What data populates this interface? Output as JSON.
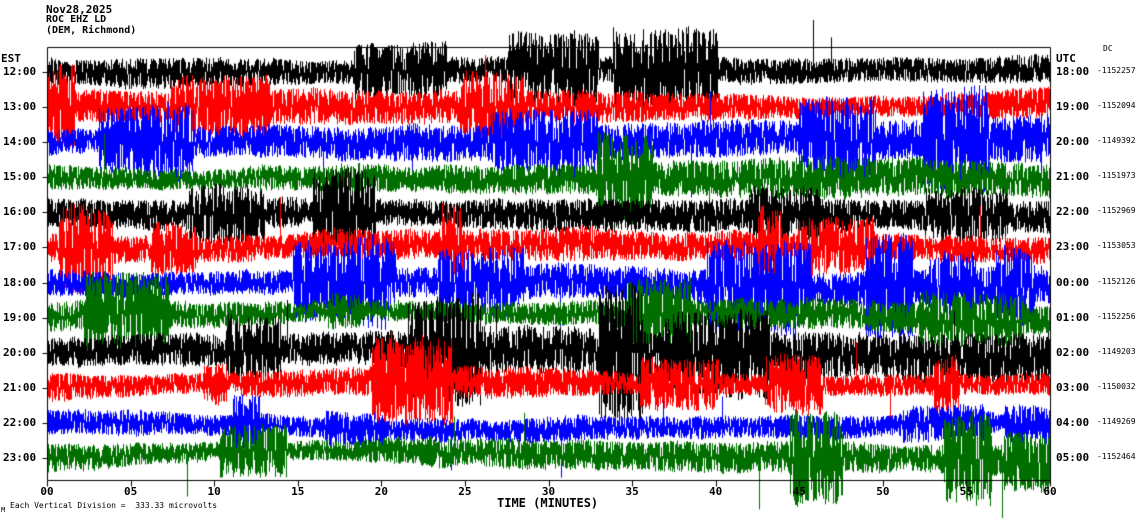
{
  "header": {
    "date": "Nov28,2025",
    "station": "ROC EHZ LD",
    "location": "(DEM, Richmond)"
  },
  "axes": {
    "left_label": "EST",
    "right_label": "UTC",
    "dc_label": "DC",
    "x_title": "TIME (MINUTES)",
    "x_ticks": [
      "00",
      "05",
      "10",
      "15",
      "20",
      "25",
      "30",
      "35",
      "40",
      "45",
      "50",
      "55",
      "60"
    ]
  },
  "footer": {
    "scale_note": "Each Vertical Division =  333.33 microvolts",
    "corner_mark": "M"
  },
  "chart_data": {
    "type": "line",
    "title": "ROC EHZ LD helicorder seismogram, Nov28,2025",
    "xlabel": "TIME (MINUTES)",
    "x_range": [
      0,
      60
    ],
    "vertical_division_microvolts": 333.33,
    "character": "continuous high-amplitude broadband noise, one hour per row, rows overlap",
    "colors_cycle": [
      "#000000",
      "#ff0000",
      "#0000ff",
      "#006f00"
    ],
    "rows": [
      {
        "est": "12:00",
        "utc": "18:00",
        "dc": "-1152257",
        "color": "#000000"
      },
      {
        "est": "13:00",
        "utc": "19:00",
        "dc": "-1152094",
        "color": "#ff0000"
      },
      {
        "est": "14:00",
        "utc": "20:00",
        "dc": "-1149392",
        "color": "#0000ff"
      },
      {
        "est": "15:00",
        "utc": "21:00",
        "dc": "-1151973",
        "color": "#006f00"
      },
      {
        "est": "16:00",
        "utc": "22:00",
        "dc": "-1152969",
        "color": "#000000"
      },
      {
        "est": "17:00",
        "utc": "23:00",
        "dc": "-1153053",
        "color": "#ff0000"
      },
      {
        "est": "18:00",
        "utc": "00:00",
        "dc": "-1152126",
        "color": "#0000ff"
      },
      {
        "est": "19:00",
        "utc": "01:00",
        "dc": "-1152256",
        "color": "#006f00"
      },
      {
        "est": "20:00",
        "utc": "02:00",
        "dc": "-1149203",
        "color": "#000000"
      },
      {
        "est": "21:00",
        "utc": "03:00",
        "dc": "-1150032",
        "color": "#ff0000"
      },
      {
        "est": "22:00",
        "utc": "04:00",
        "dc": "-1149269",
        "color": "#0000ff"
      },
      {
        "est": "23:00",
        "utc": "05:00",
        "dc": "-1152464",
        "color": "#006f00"
      }
    ]
  }
}
